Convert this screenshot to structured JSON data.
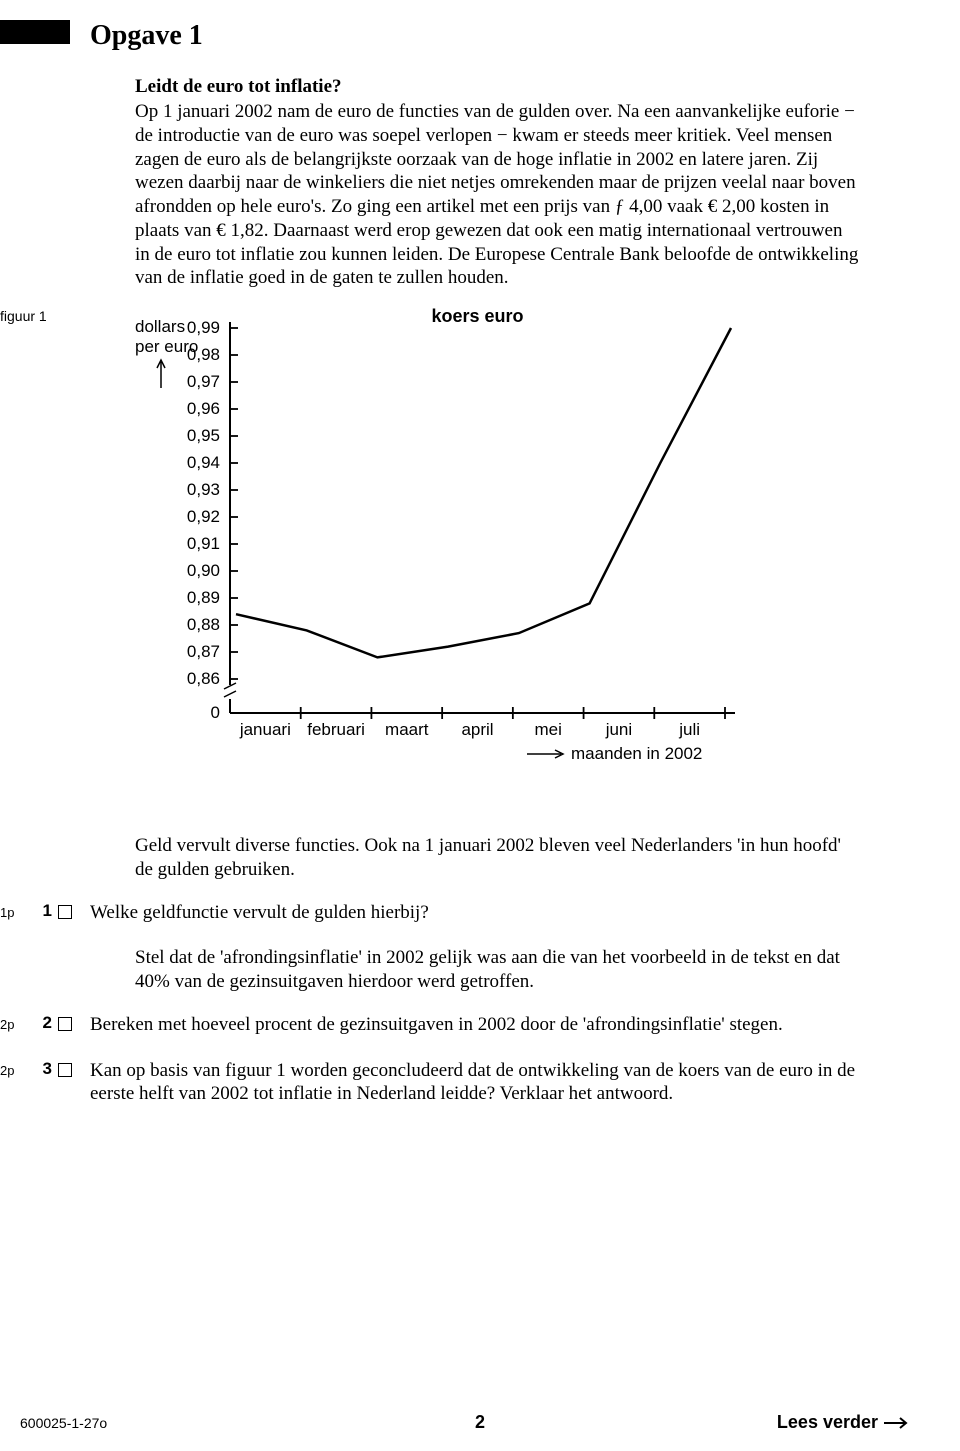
{
  "title": "Opgave 1",
  "lead": "Leidt de euro tot inflatie?",
  "paragraph1": "Op 1 januari 2002 nam de euro de functies van de gulden over. Na een aanvankelijke euforie − de introductie van de euro was soepel verlopen − kwam er steeds meer kritiek. Veel mensen zagen de euro als de belangrijkste oorzaak van de hoge inflatie in 2002 en latere jaren. Zij wezen daarbij naar de winkeliers die niet netjes omrekenden maar de prijzen veelal naar boven afrondden op hele euro's. Zo ging een artikel met een prijs van ƒ 4,00 vaak € 2,00 kosten in plaats van € 1,82. Daarnaast werd erop gewezen dat ook een matig internationaal vertrouwen in de euro tot inflatie zou kunnen leiden. De Europese Centrale Bank beloofde de ontwikkeling van de inflatie goed in de gaten te zullen houden.",
  "figure_label": "figuur 1",
  "chart": {
    "type": "line",
    "title": "koers euro",
    "y_axis_label_line1": "dollars",
    "y_axis_label_line2": "per euro",
    "y_ticks": [
      "0,99",
      "0,98",
      "0,97",
      "0,96",
      "0,95",
      "0,94",
      "0,93",
      "0,92",
      "0,91",
      "0,90",
      "0,89",
      "0,88",
      "0,87",
      "0,86",
      "0"
    ],
    "x_ticks": [
      "januari",
      "februari",
      "maart",
      "april",
      "mei",
      "juni",
      "juli"
    ],
    "x_caption": "maanden in 2002",
    "line_color": "#000000",
    "line_width": 2.5,
    "axis_color": "#000000",
    "background_color": "#ffffff",
    "data_points_y": [
      0.884,
      0.878,
      0.868,
      0.872,
      0.877,
      0.888,
      0.94,
      0.99
    ],
    "ylim": [
      0.86,
      0.99
    ],
    "break_axis": true
  },
  "q_intro1": "Geld vervult diverse functies. Ook na 1 januari 2002 bleven veel Nederlanders 'in hun hoofd' de gulden gebruiken.",
  "q1_points": "1p",
  "q1_num": "1",
  "q1_text": "Welke geldfunctie vervult de gulden hierbij?",
  "q_intro2": "Stel dat de 'afrondingsinflatie' in 2002 gelijk was aan die van het voorbeeld in de tekst en dat 40% van de gezinsuitgaven hierdoor werd getroffen.",
  "q2_points": "2p",
  "q2_num": "2",
  "q2_text": "Bereken met hoeveel procent de gezinsuitgaven in 2002 door de 'afrondingsinflatie' stegen.",
  "q3_points": "2p",
  "q3_num": "3",
  "q3_text": "Kan op basis van figuur 1 worden geconcludeerd dat de ontwikkeling van de koers van de euro in de eerste helft van 2002 tot inflatie in Nederland leidde? Verklaar het antwoord.",
  "footer_left": "600025-1-27o",
  "footer_center": "2",
  "footer_right": "Lees verder"
}
